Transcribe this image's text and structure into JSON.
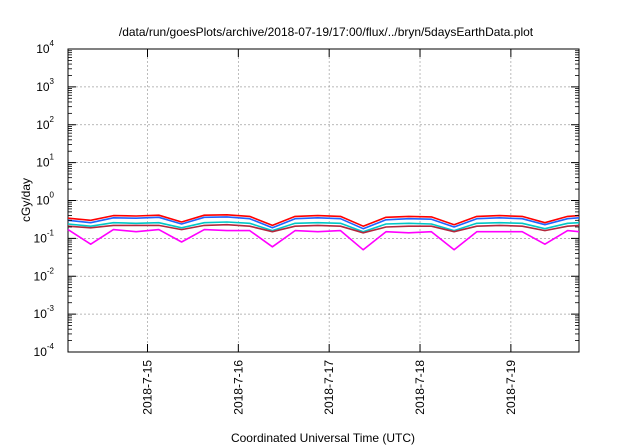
{
  "chart_data": {
    "type": "line",
    "title": "/data/run/goesPlots/archive/2018-07-19/17:00/flux/../bryn/5daysEarthData.plot",
    "xlabel": "Coordinated Universal Time (UTC)",
    "ylabel": "cGy/day",
    "yscale": "log",
    "ylim": [
      0.0001,
      10000
    ],
    "xlim": [
      "2018-07-14 03:00",
      "2018-07-19 18:00"
    ],
    "x_ticks": [
      "2018-7-15",
      "2018-7-16",
      "2018-7-17",
      "2018-7-18",
      "2018-7-19"
    ],
    "y_ticks": [
      {
        "base": "10",
        "exp": "-4",
        "value": 0.0001
      },
      {
        "base": "10",
        "exp": "-3",
        "value": 0.001
      },
      {
        "base": "10",
        "exp": "-2",
        "value": 0.01
      },
      {
        "base": "10",
        "exp": "-1",
        "value": 0.1
      },
      {
        "base": "10",
        "exp": "0",
        "value": 1
      },
      {
        "base": "10",
        "exp": "1",
        "value": 10
      },
      {
        "base": "10",
        "exp": "2",
        "value": 100
      },
      {
        "base": "10",
        "exp": "3",
        "value": 1000
      },
      {
        "base": "10",
        "exp": "4",
        "value": 10000
      }
    ],
    "grid": true,
    "legend": "none",
    "series": [
      {
        "color": "#ff0000",
        "points": [
          [
            "2018-07-14 03:00",
            0.34
          ],
          [
            "2018-07-14 09:00",
            0.3
          ],
          [
            "2018-07-14 15:00",
            0.4
          ],
          [
            "2018-07-14 21:00",
            0.39
          ],
          [
            "2018-07-15 03:00",
            0.41
          ],
          [
            "2018-07-15 09:00",
            0.27
          ],
          [
            "2018-07-15 15:00",
            0.41
          ],
          [
            "2018-07-15 21:00",
            0.42
          ],
          [
            "2018-07-16 03:00",
            0.38
          ],
          [
            "2018-07-16 09:00",
            0.22
          ],
          [
            "2018-07-16 15:00",
            0.38
          ],
          [
            "2018-07-16 21:00",
            0.4
          ],
          [
            "2018-07-17 03:00",
            0.38
          ],
          [
            "2018-07-17 09:00",
            0.21
          ],
          [
            "2018-07-17 15:00",
            0.36
          ],
          [
            "2018-07-17 21:00",
            0.38
          ],
          [
            "2018-07-18 03:00",
            0.37
          ],
          [
            "2018-07-18 09:00",
            0.23
          ],
          [
            "2018-07-18 15:00",
            0.38
          ],
          [
            "2018-07-18 21:00",
            0.4
          ],
          [
            "2018-07-19 03:00",
            0.38
          ],
          [
            "2018-07-19 09:00",
            0.26
          ],
          [
            "2018-07-19 15:00",
            0.38
          ],
          [
            "2018-07-19 18:00",
            0.4
          ]
        ]
      },
      {
        "color": "#1e64ff",
        "points": [
          [
            "2018-07-14 03:00",
            0.3
          ],
          [
            "2018-07-14 09:00",
            0.26
          ],
          [
            "2018-07-14 15:00",
            0.35
          ],
          [
            "2018-07-14 21:00",
            0.34
          ],
          [
            "2018-07-15 03:00",
            0.36
          ],
          [
            "2018-07-15 09:00",
            0.24
          ],
          [
            "2018-07-15 15:00",
            0.36
          ],
          [
            "2018-07-15 21:00",
            0.37
          ],
          [
            "2018-07-16 03:00",
            0.33
          ],
          [
            "2018-07-16 09:00",
            0.19
          ],
          [
            "2018-07-16 15:00",
            0.33
          ],
          [
            "2018-07-16 21:00",
            0.35
          ],
          [
            "2018-07-17 03:00",
            0.33
          ],
          [
            "2018-07-17 09:00",
            0.18
          ],
          [
            "2018-07-17 15:00",
            0.31
          ],
          [
            "2018-07-17 21:00",
            0.33
          ],
          [
            "2018-07-18 03:00",
            0.32
          ],
          [
            "2018-07-18 09:00",
            0.2
          ],
          [
            "2018-07-18 15:00",
            0.33
          ],
          [
            "2018-07-18 21:00",
            0.35
          ],
          [
            "2018-07-19 03:00",
            0.33
          ],
          [
            "2018-07-19 09:00",
            0.23
          ],
          [
            "2018-07-19 15:00",
            0.33
          ],
          [
            "2018-07-19 18:00",
            0.35
          ]
        ]
      },
      {
        "color": "#00c8c8",
        "points": [
          [
            "2018-07-14 03:00",
            0.24
          ],
          [
            "2018-07-14 09:00",
            0.21
          ],
          [
            "2018-07-14 15:00",
            0.26
          ],
          [
            "2018-07-14 21:00",
            0.25
          ],
          [
            "2018-07-15 03:00",
            0.26
          ],
          [
            "2018-07-15 09:00",
            0.19
          ],
          [
            "2018-07-15 15:00",
            0.26
          ],
          [
            "2018-07-15 21:00",
            0.27
          ],
          [
            "2018-07-16 03:00",
            0.25
          ],
          [
            "2018-07-16 09:00",
            0.16
          ],
          [
            "2018-07-16 15:00",
            0.25
          ],
          [
            "2018-07-16 21:00",
            0.26
          ],
          [
            "2018-07-17 03:00",
            0.25
          ],
          [
            "2018-07-17 09:00",
            0.15
          ],
          [
            "2018-07-17 15:00",
            0.24
          ],
          [
            "2018-07-17 21:00",
            0.25
          ],
          [
            "2018-07-18 03:00",
            0.24
          ],
          [
            "2018-07-18 09:00",
            0.16
          ],
          [
            "2018-07-18 15:00",
            0.25
          ],
          [
            "2018-07-18 21:00",
            0.26
          ],
          [
            "2018-07-19 03:00",
            0.25
          ],
          [
            "2018-07-19 09:00",
            0.18
          ],
          [
            "2018-07-19 15:00",
            0.25
          ],
          [
            "2018-07-19 18:00",
            0.26
          ]
        ]
      },
      {
        "color": "#b4283c",
        "points": [
          [
            "2018-07-14 03:00",
            0.21
          ],
          [
            "2018-07-14 09:00",
            0.19
          ],
          [
            "2018-07-14 15:00",
            0.22
          ],
          [
            "2018-07-14 21:00",
            0.22
          ],
          [
            "2018-07-15 03:00",
            0.22
          ],
          [
            "2018-07-15 09:00",
            0.17
          ],
          [
            "2018-07-15 15:00",
            0.22
          ],
          [
            "2018-07-15 21:00",
            0.23
          ],
          [
            "2018-07-16 03:00",
            0.21
          ],
          [
            "2018-07-16 09:00",
            0.15
          ],
          [
            "2018-07-16 15:00",
            0.21
          ],
          [
            "2018-07-16 21:00",
            0.22
          ],
          [
            "2018-07-17 03:00",
            0.21
          ],
          [
            "2018-07-17 09:00",
            0.14
          ],
          [
            "2018-07-17 15:00",
            0.2
          ],
          [
            "2018-07-17 21:00",
            0.21
          ],
          [
            "2018-07-18 03:00",
            0.21
          ],
          [
            "2018-07-18 09:00",
            0.15
          ],
          [
            "2018-07-18 15:00",
            0.21
          ],
          [
            "2018-07-18 21:00",
            0.22
          ],
          [
            "2018-07-19 03:00",
            0.21
          ],
          [
            "2018-07-19 09:00",
            0.16
          ],
          [
            "2018-07-19 15:00",
            0.21
          ],
          [
            "2018-07-19 18:00",
            0.22
          ]
        ]
      },
      {
        "color": "#ff00ff",
        "points": [
          [
            "2018-07-14 03:00",
            0.17
          ],
          [
            "2018-07-14 09:00",
            0.07
          ],
          [
            "2018-07-14 15:00",
            0.17
          ],
          [
            "2018-07-14 21:00",
            0.15
          ],
          [
            "2018-07-15 03:00",
            0.17
          ],
          [
            "2018-07-15 09:00",
            0.08
          ],
          [
            "2018-07-15 15:00",
            0.17
          ],
          [
            "2018-07-15 21:00",
            0.16
          ],
          [
            "2018-07-16 03:00",
            0.16
          ],
          [
            "2018-07-16 09:00",
            0.06
          ],
          [
            "2018-07-16 15:00",
            0.16
          ],
          [
            "2018-07-16 21:00",
            0.15
          ],
          [
            "2018-07-17 03:00",
            0.16
          ],
          [
            "2018-07-17 09:00",
            0.05
          ],
          [
            "2018-07-17 15:00",
            0.15
          ],
          [
            "2018-07-17 21:00",
            0.14
          ],
          [
            "2018-07-18 03:00",
            0.15
          ],
          [
            "2018-07-18 09:00",
            0.05
          ],
          [
            "2018-07-18 15:00",
            0.15
          ],
          [
            "2018-07-18 21:00",
            0.15
          ],
          [
            "2018-07-19 03:00",
            0.15
          ],
          [
            "2018-07-19 09:00",
            0.07
          ],
          [
            "2018-07-19 15:00",
            0.16
          ],
          [
            "2018-07-19 18:00",
            0.15
          ]
        ]
      }
    ]
  }
}
